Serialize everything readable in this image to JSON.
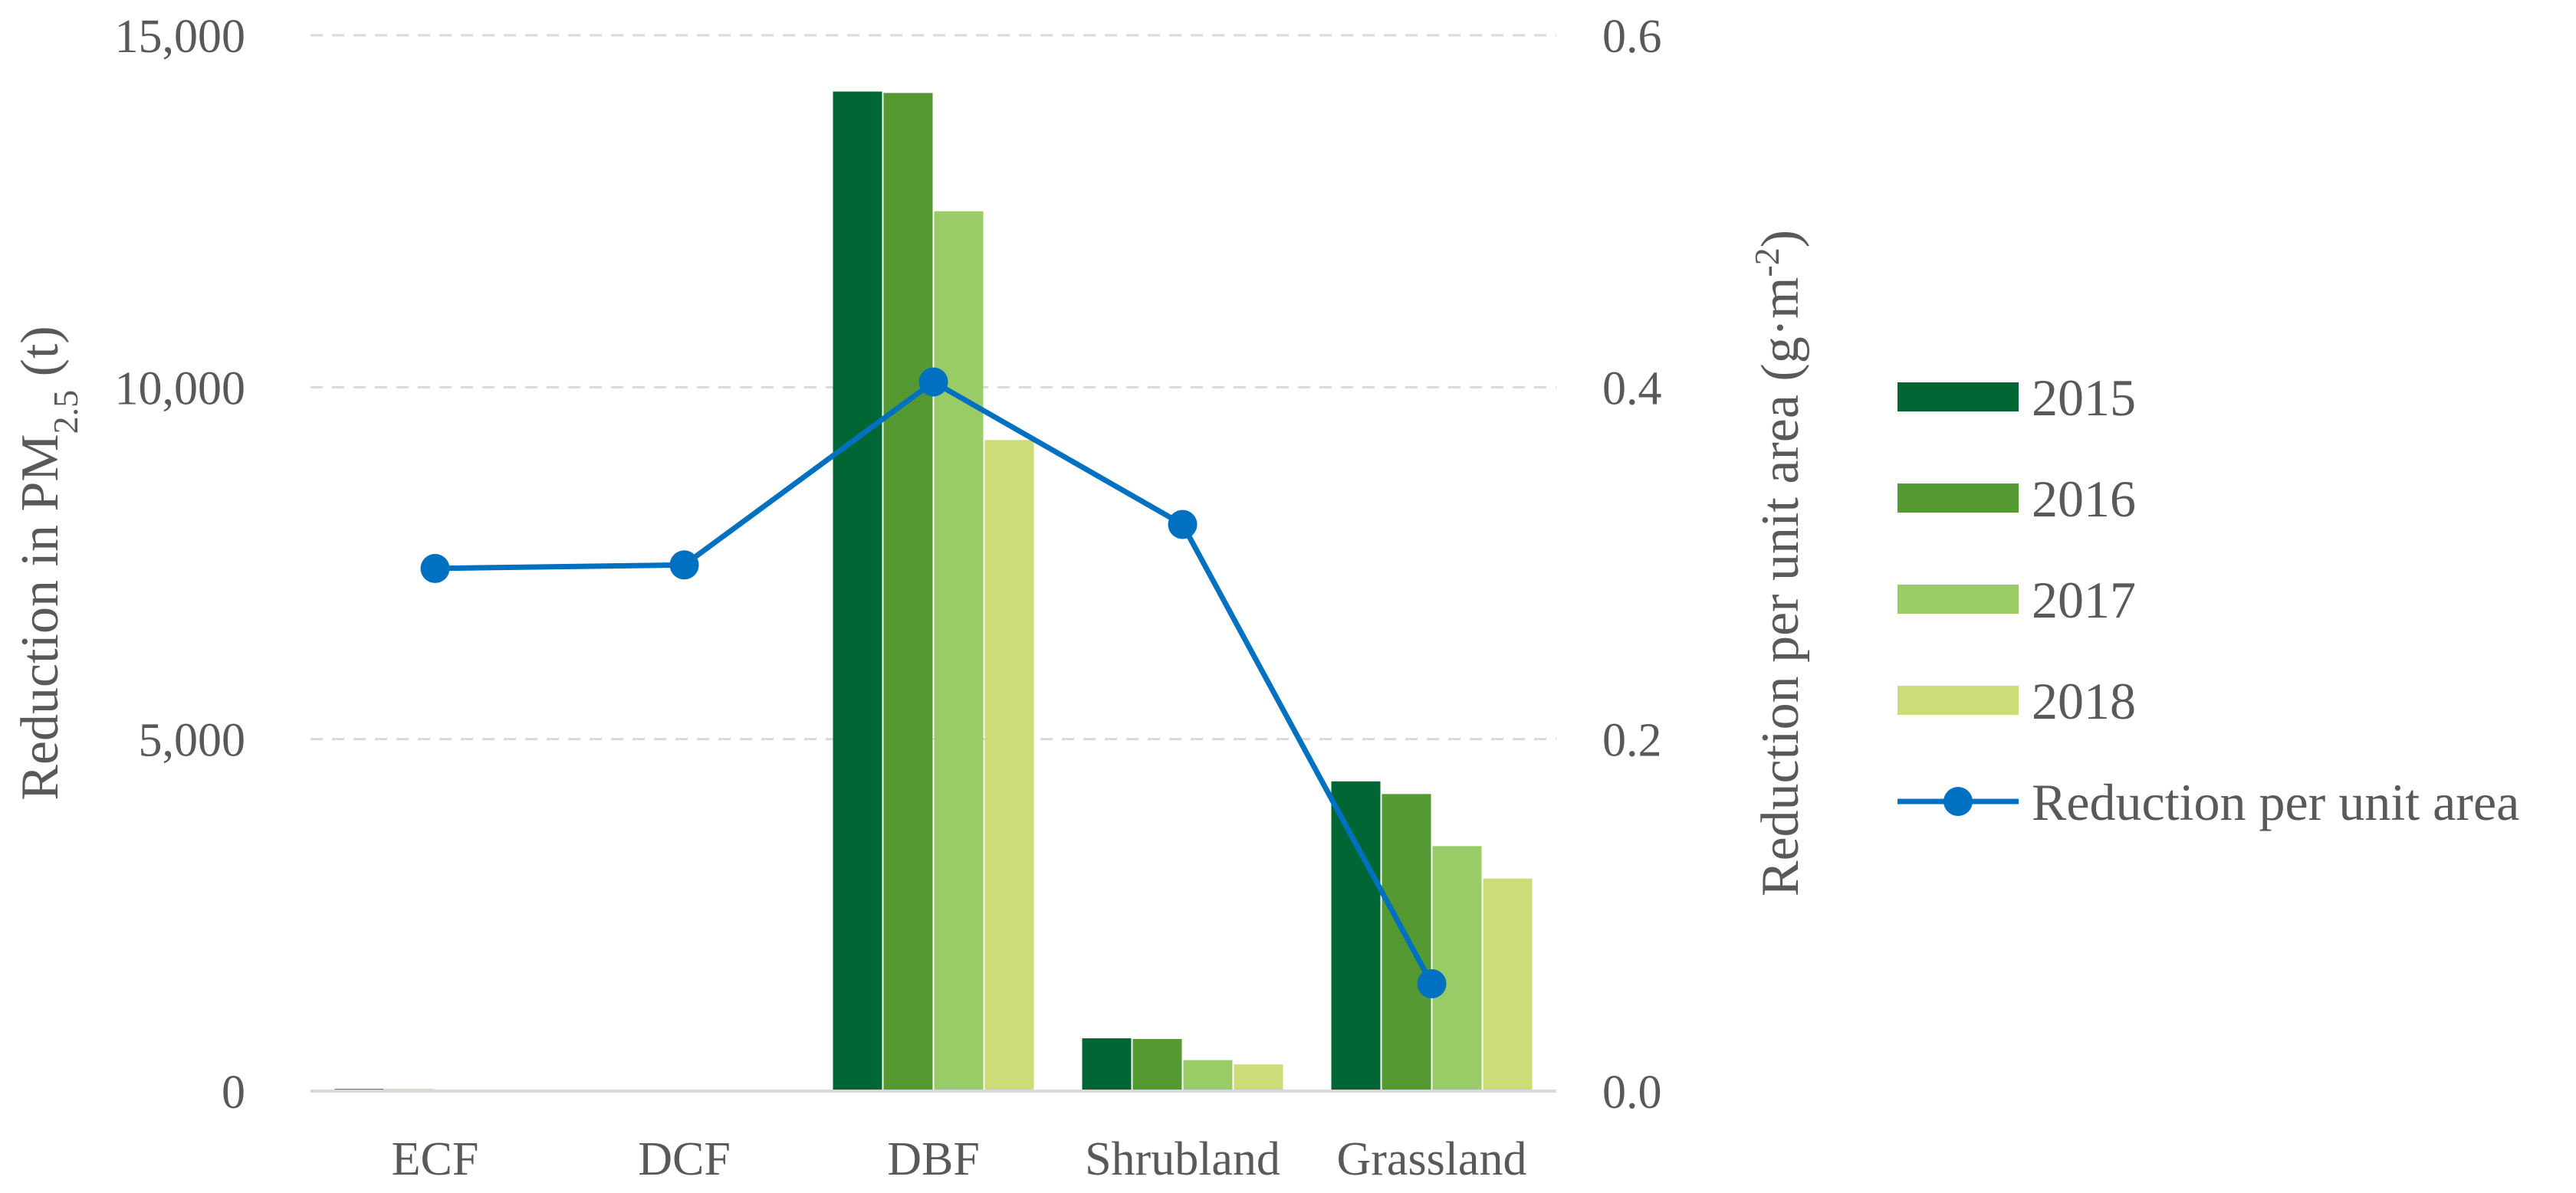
{
  "chart_data": {
    "type": "bar",
    "categories": [
      "ECF",
      "DCF",
      "DBF",
      "Shrubland",
      "Grassland"
    ],
    "series": [
      {
        "name": "2015",
        "values": [
          30,
          10,
          14200,
          750,
          4400
        ],
        "color": "#006633"
      },
      {
        "name": "2016",
        "values": [
          25,
          8,
          14180,
          740,
          4220
        ],
        "color": "#559933"
      },
      {
        "name": "2017",
        "values": [
          20,
          6,
          12500,
          440,
          3480
        ],
        "color": "#99cc66"
      },
      {
        "name": "2018",
        "values": [
          15,
          5,
          9250,
          380,
          3020
        ],
        "color": "#ccdd77"
      }
    ],
    "line_series": {
      "name": "Reduction per unit area",
      "values": [
        0.297,
        0.299,
        0.403,
        0.322,
        0.061
      ],
      "color": "#0070c0",
      "axis": "right"
    },
    "ylabel_left": {
      "pre": "Reduction in PM",
      "sub": "2.5",
      "post": " (t)"
    },
    "ylabel_right": {
      "pre": "Reduction per unit area (g·m",
      "sup": "-2",
      "post": ")"
    },
    "ylim_left": [
      0,
      15000
    ],
    "yticks_left": [
      "0",
      "5,000",
      "10,000",
      "15,000"
    ],
    "yticks_left_values": [
      0,
      5000,
      10000,
      15000
    ],
    "ylim_right": [
      0,
      0.6
    ],
    "yticks_right": [
      "0.0",
      "0.2",
      "0.4",
      "0.6"
    ],
    "yticks_right_values": [
      0,
      0.2,
      0.4,
      0.6
    ],
    "grid": true,
    "legend_position": "right"
  }
}
